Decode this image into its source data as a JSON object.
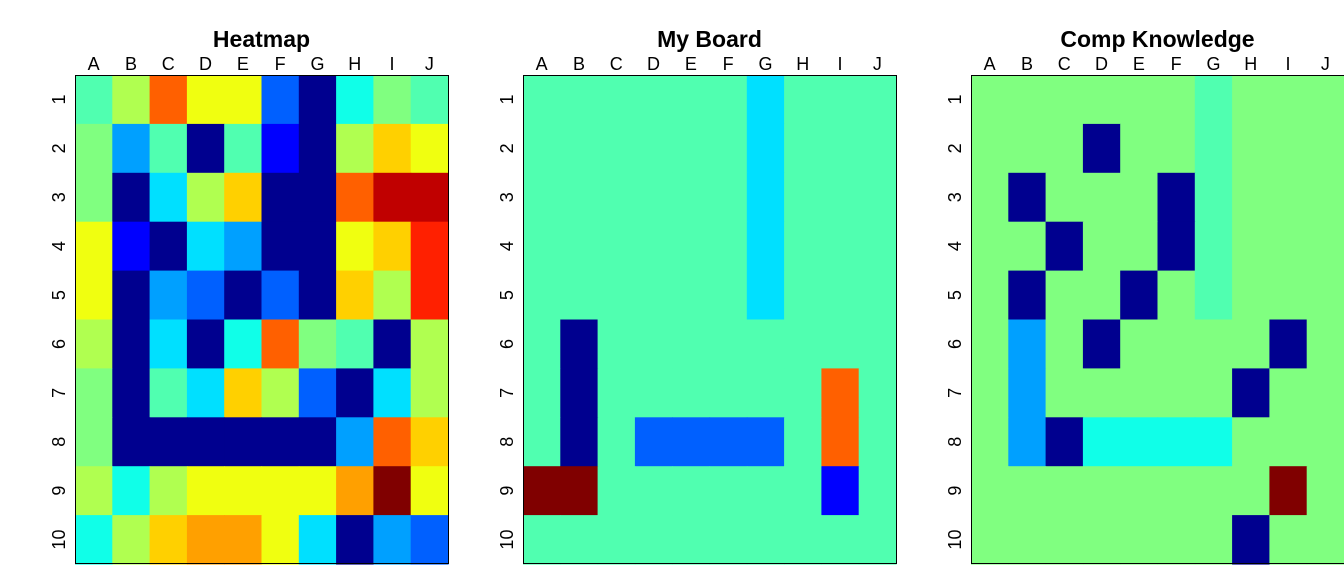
{
  "colors": {
    "palette": [
      "#00008F",
      "#0000FF",
      "#0060FF",
      "#00A0FF",
      "#00E0FF",
      "#10FFE8",
      "#50FFB0",
      "#80FF80",
      "#B0FF50",
      "#F0FF10",
      "#FFD000",
      "#FFA000",
      "#FF6000",
      "#FF2000",
      "#C00000",
      "#800000"
    ]
  },
  "chart_data": [
    {
      "type": "heatmap",
      "title": "Heatmap",
      "xlabel": "",
      "ylabel": "",
      "columns": [
        "A",
        "B",
        "C",
        "D",
        "E",
        "F",
        "G",
        "H",
        "I",
        "J"
      ],
      "rows": [
        "1",
        "2",
        "3",
        "4",
        "5",
        "6",
        "7",
        "8",
        "9",
        "10"
      ],
      "value_range": [
        0,
        15
      ],
      "values": [
        [
          6,
          8,
          12,
          9,
          9,
          2,
          0,
          5,
          7,
          6
        ],
        [
          7,
          3,
          6,
          0,
          6,
          1,
          0,
          8,
          10,
          9
        ],
        [
          7,
          0,
          4,
          8,
          10,
          0,
          0,
          12,
          14,
          14
        ],
        [
          9,
          1,
          0,
          4,
          3,
          0,
          0,
          9,
          10,
          13
        ],
        [
          9,
          0,
          3,
          2,
          0,
          2,
          0,
          10,
          8,
          13
        ],
        [
          8,
          0,
          4,
          0,
          5,
          12,
          7,
          6,
          0,
          8
        ],
        [
          7,
          0,
          6,
          4,
          10,
          8,
          2,
          0,
          4,
          8
        ],
        [
          7,
          0,
          0,
          0,
          0,
          0,
          0,
          3,
          12,
          10
        ],
        [
          8,
          5,
          8,
          9,
          9,
          9,
          9,
          11,
          15,
          9
        ],
        [
          5,
          8,
          10,
          11,
          11,
          9,
          4,
          0,
          3,
          2
        ]
      ]
    },
    {
      "type": "heatmap",
      "title": "My Board",
      "xlabel": "",
      "ylabel": "",
      "columns": [
        "A",
        "B",
        "C",
        "D",
        "E",
        "F",
        "G",
        "H",
        "I",
        "J"
      ],
      "rows": [
        "1",
        "2",
        "3",
        "4",
        "5",
        "6",
        "7",
        "8",
        "9",
        "10"
      ],
      "value_range": [
        0,
        15
      ],
      "values": [
        [
          6,
          6,
          6,
          6,
          6,
          6,
          4,
          6,
          6,
          6
        ],
        [
          6,
          6,
          6,
          6,
          6,
          6,
          4,
          6,
          6,
          6
        ],
        [
          6,
          6,
          6,
          6,
          6,
          6,
          4,
          6,
          6,
          6
        ],
        [
          6,
          6,
          6,
          6,
          6,
          6,
          4,
          6,
          6,
          6
        ],
        [
          6,
          6,
          6,
          6,
          6,
          6,
          4,
          6,
          6,
          6
        ],
        [
          6,
          0,
          6,
          6,
          6,
          6,
          6,
          6,
          6,
          6
        ],
        [
          6,
          0,
          6,
          6,
          6,
          6,
          6,
          6,
          12,
          6
        ],
        [
          6,
          0,
          6,
          2,
          2,
          2,
          2,
          6,
          12,
          6
        ],
        [
          15,
          15,
          6,
          6,
          6,
          6,
          6,
          6,
          1,
          6
        ],
        [
          6,
          6,
          6,
          6,
          6,
          6,
          6,
          6,
          6,
          6
        ]
      ]
    },
    {
      "type": "heatmap",
      "title": "Comp Knowledge",
      "xlabel": "",
      "ylabel": "",
      "columns": [
        "A",
        "B",
        "C",
        "D",
        "E",
        "F",
        "G",
        "H",
        "I",
        "J"
      ],
      "rows": [
        "1",
        "2",
        "3",
        "4",
        "5",
        "6",
        "7",
        "8",
        "9",
        "10"
      ],
      "value_range": [
        0,
        15
      ],
      "values": [
        [
          7,
          7,
          7,
          7,
          7,
          7,
          6,
          7,
          7,
          7
        ],
        [
          7,
          7,
          7,
          0,
          7,
          7,
          6,
          7,
          7,
          7
        ],
        [
          7,
          0,
          7,
          7,
          7,
          0,
          6,
          7,
          7,
          7
        ],
        [
          7,
          7,
          0,
          7,
          7,
          0,
          6,
          7,
          7,
          7
        ],
        [
          7,
          0,
          7,
          7,
          0,
          7,
          6,
          7,
          7,
          7
        ],
        [
          7,
          3,
          7,
          0,
          7,
          7,
          7,
          7,
          0,
          7
        ],
        [
          7,
          3,
          7,
          7,
          7,
          7,
          7,
          0,
          7,
          7
        ],
        [
          7,
          3,
          0,
          5,
          5,
          5,
          5,
          7,
          7,
          7
        ],
        [
          7,
          7,
          7,
          7,
          7,
          7,
          7,
          7,
          15,
          7
        ],
        [
          7,
          7,
          7,
          7,
          7,
          7,
          7,
          0,
          7,
          7
        ]
      ]
    }
  ]
}
